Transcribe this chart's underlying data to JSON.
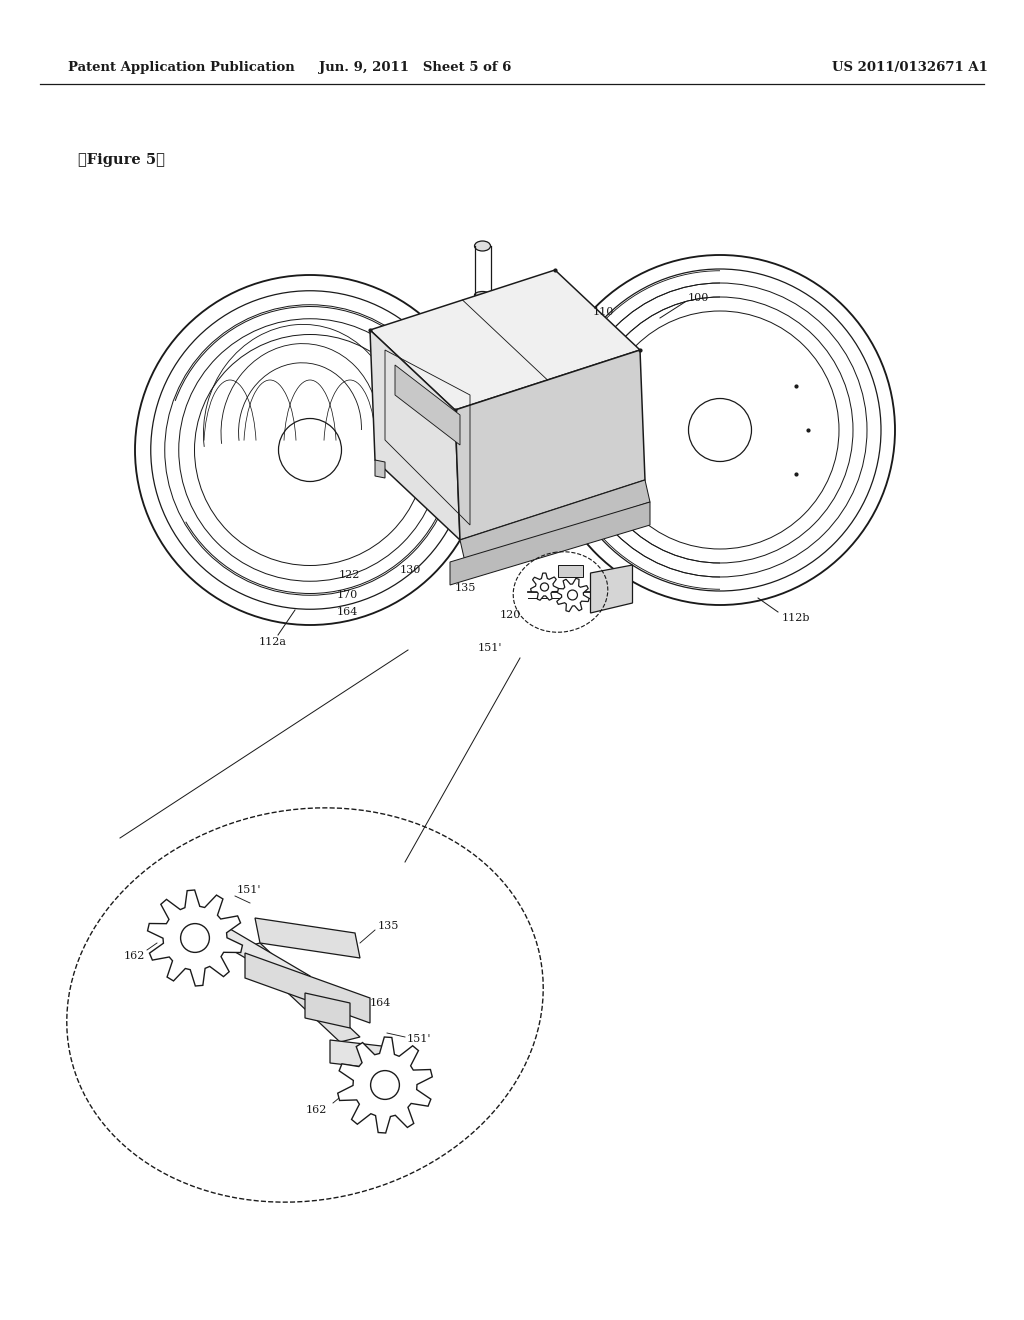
{
  "bg_color": "#ffffff",
  "header_left": "Patent Application Publication",
  "header_mid": "Jun. 9, 2011   Sheet 5 of 6",
  "header_right": "US 2011/0132671 A1",
  "figure_label": "【Figure 5】",
  "ref_100": "100",
  "ref_110": "110",
  "ref_112a": "112a",
  "ref_112b": "112b",
  "ref_120": "120",
  "ref_122": "122",
  "ref_130": "130",
  "ref_135": "135",
  "ref_151a": "151'",
  "ref_151b": "151'",
  "ref_162a": "162",
  "ref_162b": "162",
  "ref_164": "164",
  "ref_170": "170",
  "line_color": "#1a1a1a",
  "line_width": 0.9,
  "header_fontsize": 9.5,
  "label_fontsize": 8.0,
  "fig_width": 1024,
  "fig_height": 1320
}
